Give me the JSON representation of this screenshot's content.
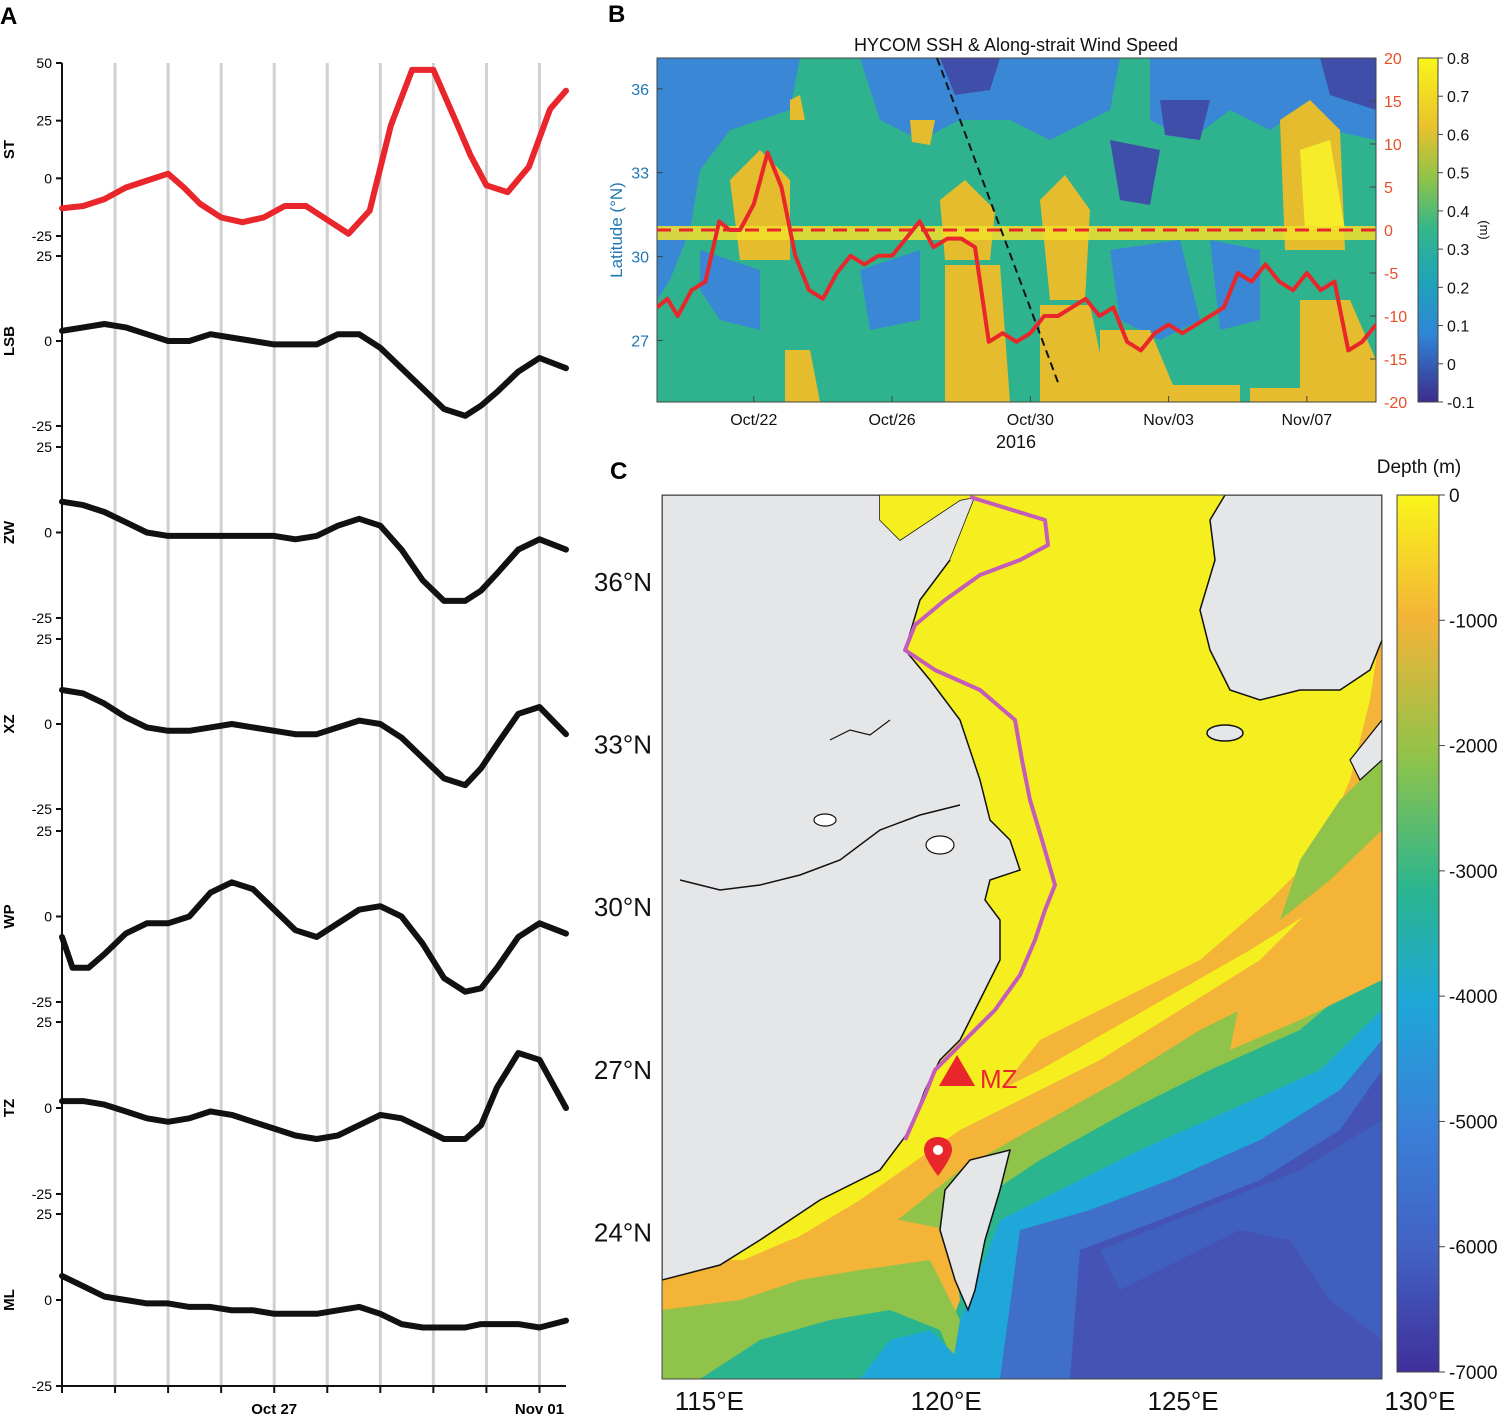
{
  "panels": {
    "a": "A",
    "b": "B",
    "c": "C"
  },
  "chart_data": [
    {
      "type": "line",
      "panel": "A",
      "x_labels": [
        "Oct 27",
        "Nov 01"
      ],
      "x_label_days": [
        27,
        32
      ],
      "x_domain": [
        23,
        32.5
      ],
      "vertical_gridline_days": [
        24,
        25,
        26,
        27,
        28,
        29,
        30,
        31,
        32
      ],
      "series": [
        {
          "name": "ST",
          "color": "#e8262b",
          "ylim": [
            -25,
            50
          ],
          "ticks": [
            "50",
            "25",
            "0",
            "-25"
          ],
          "tick_values": [
            50,
            25,
            0,
            -25
          ],
          "x": [
            23,
            23.4,
            23.8,
            24.2,
            24.6,
            25.0,
            25.3,
            25.6,
            26.0,
            26.4,
            26.8,
            27.2,
            27.6,
            28.0,
            28.4,
            28.8,
            29.2,
            29.6,
            30.0,
            30.4,
            30.7,
            31.0,
            31.4,
            31.8,
            32.2,
            32.5
          ],
          "y": [
            -13,
            -12,
            -9,
            -4,
            -1,
            2,
            -4,
            -11,
            -17,
            -19,
            -17,
            -12,
            -12,
            -18,
            -24,
            -14,
            23,
            47,
            47,
            26,
            10,
            -3,
            -6,
            5,
            30,
            38
          ]
        },
        {
          "name": "LSB",
          "color": "#111111",
          "ylim": [
            -25,
            25
          ],
          "ticks": [
            "25",
            "0",
            "-25"
          ],
          "tick_values": [
            25,
            0,
            -25
          ],
          "x": [
            23,
            23.4,
            23.8,
            24.2,
            24.6,
            25.0,
            25.4,
            25.8,
            26.2,
            26.6,
            27.0,
            27.4,
            27.8,
            28.2,
            28.6,
            29.0,
            29.4,
            29.8,
            30.2,
            30.6,
            30.9,
            31.2,
            31.6,
            32.0,
            32.5
          ],
          "y": [
            3,
            4,
            5,
            4,
            2,
            0,
            0,
            2,
            1,
            0,
            -1,
            -1,
            -1,
            2,
            2,
            -2,
            -8,
            -14,
            -20,
            -22,
            -19,
            -15,
            -9,
            -5,
            -8
          ]
        },
        {
          "name": "ZW",
          "color": "#111111",
          "ylim": [
            -25,
            25
          ],
          "ticks": [
            "25",
            "0",
            "-25"
          ],
          "tick_values": [
            25,
            0,
            -25
          ],
          "x": [
            23,
            23.4,
            23.8,
            24.2,
            24.6,
            25.0,
            25.4,
            25.8,
            26.2,
            26.6,
            27.0,
            27.4,
            27.8,
            28.2,
            28.6,
            29.0,
            29.4,
            29.8,
            30.2,
            30.6,
            30.9,
            31.2,
            31.6,
            32.0,
            32.5
          ],
          "y": [
            9,
            8,
            6,
            3,
            0,
            -1,
            -1,
            -1,
            -1,
            -1,
            -1,
            -2,
            -1,
            2,
            4,
            2,
            -5,
            -14,
            -20,
            -20,
            -17,
            -12,
            -5,
            -2,
            -5
          ]
        },
        {
          "name": "XZ",
          "color": "#111111",
          "ylim": [
            -25,
            25
          ],
          "ticks": [
            "25",
            "0",
            "-25"
          ],
          "tick_values": [
            25,
            0,
            -25
          ],
          "x": [
            23,
            23.4,
            23.8,
            24.2,
            24.6,
            25.0,
            25.4,
            25.8,
            26.2,
            26.6,
            27.0,
            27.4,
            27.8,
            28.2,
            28.6,
            29.0,
            29.4,
            29.8,
            30.2,
            30.6,
            30.9,
            31.2,
            31.6,
            32.0,
            32.5
          ],
          "y": [
            10,
            9,
            6,
            2,
            -1,
            -2,
            -2,
            -1,
            0,
            -1,
            -2,
            -3,
            -3,
            -1,
            1,
            0,
            -4,
            -10,
            -16,
            -18,
            -13,
            -6,
            3,
            5,
            -3
          ]
        },
        {
          "name": "WP",
          "color": "#111111",
          "ylim": [
            -25,
            25
          ],
          "ticks": [
            "25",
            "0",
            "-25"
          ],
          "tick_values": [
            25,
            0,
            -25
          ],
          "x": [
            23,
            23.2,
            23.5,
            23.8,
            24.2,
            24.6,
            25.0,
            25.4,
            25.8,
            26.2,
            26.6,
            27.0,
            27.4,
            27.8,
            28.2,
            28.6,
            29.0,
            29.4,
            29.8,
            30.2,
            30.6,
            30.9,
            31.2,
            31.6,
            32.0,
            32.5
          ],
          "y": [
            -6,
            -15,
            -15,
            -11,
            -5,
            -2,
            -2,
            0,
            7,
            10,
            8,
            2,
            -4,
            -6,
            -2,
            2,
            3,
            0,
            -8,
            -18,
            -22,
            -21,
            -15,
            -6,
            -2,
            -5
          ]
        },
        {
          "name": "TZ",
          "color": "#111111",
          "ylim": [
            -25,
            25
          ],
          "ticks": [
            "25",
            "0",
            "-25"
          ],
          "tick_values": [
            25,
            0,
            -25
          ],
          "x": [
            23,
            23.4,
            23.8,
            24.2,
            24.6,
            25.0,
            25.4,
            25.8,
            26.2,
            26.6,
            27.0,
            27.4,
            27.8,
            28.2,
            28.6,
            29.0,
            29.4,
            29.8,
            30.2,
            30.6,
            30.9,
            31.2,
            31.6,
            32.0,
            32.5
          ],
          "y": [
            2,
            2,
            1,
            -1,
            -3,
            -4,
            -3,
            -1,
            -2,
            -4,
            -6,
            -8,
            -9,
            -8,
            -5,
            -2,
            -3,
            -6,
            -9,
            -9,
            -5,
            6,
            16,
            14,
            0
          ]
        },
        {
          "name": "ML",
          "color": "#111111",
          "ylim": [
            -25,
            25
          ],
          "ticks": [
            "25",
            "0",
            "-25"
          ],
          "tick_values": [
            25,
            0,
            -25
          ],
          "x": [
            23,
            23.4,
            23.8,
            24.2,
            24.6,
            25.0,
            25.4,
            25.8,
            26.2,
            26.6,
            27.0,
            27.4,
            27.8,
            28.2,
            28.6,
            29.0,
            29.4,
            29.8,
            30.2,
            30.6,
            30.9,
            31.2,
            31.6,
            32.0,
            32.5
          ],
          "y": [
            7,
            4,
            1,
            0,
            -1,
            -1,
            -2,
            -2,
            -3,
            -3,
            -4,
            -4,
            -4,
            -3,
            -2,
            -4,
            -7,
            -8,
            -8,
            -8,
            -7,
            -7,
            -7,
            -8,
            -6
          ]
        }
      ]
    },
    {
      "type": "line",
      "panel": "B",
      "title": "HYCOM SSH & Along-strait Wind Speed",
      "xlabel": "2016",
      "ylabel_left": "Latitude (°N)",
      "ylabel_right_cb": "(m)",
      "x_domain": [
        19.2,
        40.0
      ],
      "x_ticks": [
        {
          "label": "Oct/22",
          "day": 22
        },
        {
          "label": "Oct/26",
          "day": 26
        },
        {
          "label": "Oct/30",
          "day": 30
        },
        {
          "label": "Nov/03",
          "day": 34
        },
        {
          "label": "Nov/07",
          "day": 38
        }
      ],
      "left_axis": {
        "ylim": [
          24.8,
          37.1
        ],
        "ticks": [
          "36",
          "33",
          "30",
          "27"
        ],
        "tick_values": [
          36,
          33,
          30,
          27
        ],
        "color": "#1f77b4"
      },
      "right_axis": {
        "ylim": [
          -20,
          20
        ],
        "ticks": [
          "20",
          "15",
          "10",
          "5",
          "0",
          "-5",
          "-10",
          "-15",
          "-20"
        ],
        "tick_values": [
          20,
          15,
          10,
          5,
          0,
          -5,
          -10,
          -15,
          -20
        ],
        "color": "#e8502a"
      },
      "colorbar": {
        "min": -0.1,
        "max": 0.8,
        "ticks": [
          "0.8",
          "0.7",
          "0.6",
          "0.5",
          "0.4",
          "0.3",
          "0.2",
          "0.1",
          "0",
          "-0.1"
        ],
        "tick_values": [
          0.8,
          0.7,
          0.6,
          0.5,
          0.4,
          0.3,
          0.2,
          0.1,
          0,
          -0.1
        ]
      },
      "zero_line": 0,
      "wind_speed": {
        "x": [
          19.2,
          19.5,
          19.8,
          20.2,
          20.6,
          21.0,
          21.3,
          21.6,
          22.0,
          22.4,
          22.8,
          23.2,
          23.6,
          24.0,
          24.4,
          24.8,
          25.2,
          25.6,
          26.0,
          26.4,
          26.8,
          27.2,
          27.6,
          28.0,
          28.4,
          28.8,
          29.2,
          29.6,
          30.0,
          30.4,
          30.8,
          31.2,
          31.6,
          32.0,
          32.4,
          32.8,
          33.2,
          33.6,
          34.0,
          34.4,
          34.8,
          35.2,
          35.6,
          36.0,
          36.4,
          36.8,
          37.2,
          37.6,
          38.0,
          38.4,
          38.8,
          39.2,
          39.6,
          40.0
        ],
        "y": [
          -9,
          -8,
          -10,
          -7,
          -6,
          1,
          0,
          0,
          3,
          9,
          5,
          -3,
          -7,
          -8,
          -5,
          -3,
          -4,
          -3,
          -3,
          -1,
          1,
          -2,
          -1,
          -1,
          -2,
          -13,
          -12,
          -13,
          -12,
          -10,
          -10,
          -9,
          -8,
          -10,
          -9,
          -13,
          -14,
          -12,
          -11,
          -12,
          -11,
          -10,
          -9,
          -5,
          -6,
          -4,
          -6,
          -7,
          -5,
          -7,
          -6,
          -14,
          -13,
          -11
        ]
      },
      "dashed_black_line": {
        "x": [
          27.3,
          30.8
        ],
        "y": [
          37.1,
          25.5
        ]
      }
    },
    {
      "type": "heatmap",
      "panel": "C",
      "x_ticks": [
        {
          "label": "115°E",
          "lon": 115
        },
        {
          "label": "120°E",
          "lon": 120
        },
        {
          "label": "125°E",
          "lon": 125
        },
        {
          "label": "130°E",
          "lon": 130
        }
      ],
      "y_ticks": [
        {
          "label": "36°N",
          "lat": 36
        },
        {
          "label": "33°N",
          "lat": 33
        },
        {
          "label": "30°N",
          "lat": 30
        },
        {
          "label": "27°N",
          "lat": 27
        },
        {
          "label": "24°N",
          "lat": 24
        }
      ],
      "lon_range": [
        114,
        129.2
      ],
      "lat_range": [
        21.3,
        37.6
      ],
      "colorbar": {
        "title": "Depth (m)",
        "min": -7000,
        "max": 0,
        "ticks": [
          "0",
          "-1000",
          "-2000",
          "-3000",
          "-4000",
          "-5000",
          "-6000",
          "-7000"
        ],
        "tick_values": [
          0,
          -1000,
          -2000,
          -3000,
          -4000,
          -5000,
          -6000,
          -7000
        ]
      },
      "annotations": [
        {
          "text": "MZ",
          "type": "triangle-marker",
          "lon": 120.1,
          "lat": 26.5,
          "color": "#e8262b"
        },
        {
          "type": "pin-marker",
          "lon": 119.6,
          "lat": 24.6,
          "color": "#e8262b"
        }
      ]
    }
  ]
}
